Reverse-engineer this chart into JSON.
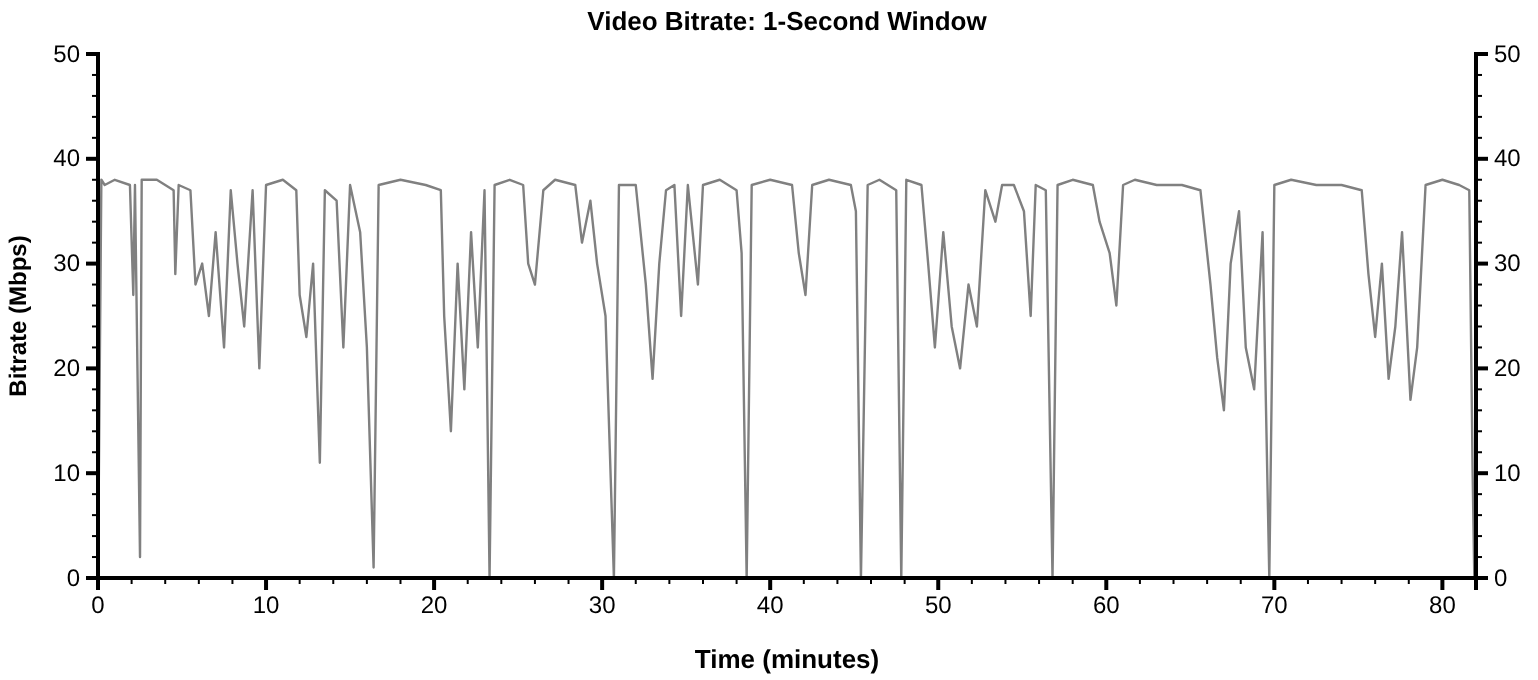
{
  "chart_data": {
    "type": "line",
    "title": "Video Bitrate: 1-Second Window",
    "xlabel": "Time (minutes)",
    "ylabel": "Bitrate (Mbps)",
    "xlim": [
      0,
      82
    ],
    "ylim": [
      0,
      50
    ],
    "y2lim": [
      0,
      50
    ],
    "xticks": [
      0,
      {
        "value": 2,
        "label": null
      },
      {
        "value": 4,
        "label": null
      },
      {
        "value": 6,
        "label": null
      },
      {
        "value": 8,
        "label": null
      },
      10,
      {
        "value": 12,
        "label": null
      },
      {
        "value": 14,
        "label": null
      },
      {
        "value": 16,
        "label": null
      },
      {
        "value": 18,
        "label": null
      },
      20,
      {
        "value": 22,
        "label": null
      },
      {
        "value": 24,
        "label": null
      },
      {
        "value": 26,
        "label": null
      },
      {
        "value": 28,
        "label": null
      },
      30,
      {
        "value": 32,
        "label": null
      },
      {
        "value": 34,
        "label": null
      },
      {
        "value": 36,
        "label": null
      },
      {
        "value": 38,
        "label": null
      },
      40,
      {
        "value": 42,
        "label": null
      },
      {
        "value": 44,
        "label": null
      },
      {
        "value": 46,
        "label": null
      },
      {
        "value": 48,
        "label": null
      },
      50,
      {
        "value": 52,
        "label": null
      },
      {
        "value": 54,
        "label": null
      },
      {
        "value": 56,
        "label": null
      },
      {
        "value": 58,
        "label": null
      },
      60,
      {
        "value": 62,
        "label": null
      },
      {
        "value": 64,
        "label": null
      },
      {
        "value": 66,
        "label": null
      },
      {
        "value": 68,
        "label": null
      },
      70,
      {
        "value": 72,
        "label": null
      },
      {
        "value": 74,
        "label": null
      },
      {
        "value": 76,
        "label": null
      },
      {
        "value": 78,
        "label": null
      },
      80
    ],
    "yticks": [
      0,
      {
        "value": 2,
        "label": null
      },
      {
        "value": 4,
        "label": null
      },
      {
        "value": 6,
        "label": null
      },
      {
        "value": 8,
        "label": null
      },
      10,
      {
        "value": 12,
        "label": null
      },
      {
        "value": 14,
        "label": null
      },
      {
        "value": 16,
        "label": null
      },
      {
        "value": 18,
        "label": null
      },
      20,
      {
        "value": 22,
        "label": null
      },
      {
        "value": 24,
        "label": null
      },
      {
        "value": 26,
        "label": null
      },
      {
        "value": 28,
        "label": null
      },
      30,
      {
        "value": 32,
        "label": null
      },
      {
        "value": 34,
        "label": null
      },
      {
        "value": 36,
        "label": null
      },
      {
        "value": 38,
        "label": null
      },
      40,
      {
        "value": 42,
        "label": null
      },
      {
        "value": 44,
        "label": null
      },
      {
        "value": 46,
        "label": null
      },
      {
        "value": 48,
        "label": null
      },
      50
    ],
    "y2ticks": [
      0,
      {
        "value": 2,
        "label": null
      },
      {
        "value": 4,
        "label": null
      },
      {
        "value": 6,
        "label": null
      },
      {
        "value": 8,
        "label": null
      },
      10,
      {
        "value": 12,
        "label": null
      },
      {
        "value": 14,
        "label": null
      },
      {
        "value": 16,
        "label": null
      },
      {
        "value": 18,
        "label": null
      },
      20,
      {
        "value": 22,
        "label": null
      },
      {
        "value": 24,
        "label": null
      },
      {
        "value": 26,
        "label": null
      },
      {
        "value": 28,
        "label": null
      },
      30,
      {
        "value": 32,
        "label": null
      },
      {
        "value": 34,
        "label": null
      },
      {
        "value": 36,
        "label": null
      },
      {
        "value": 38,
        "label": null
      },
      40,
      {
        "value": 42,
        "label": null
      },
      {
        "value": 44,
        "label": null
      },
      {
        "value": 46,
        "label": null
      },
      {
        "value": 48,
        "label": null
      },
      50
    ],
    "grid": false,
    "marker": "none",
    "line_style": "solid",
    "series": [
      {
        "color": "#808080",
        "x": [
          0,
          0.2,
          0.4,
          1,
          1.9,
          2.1,
          2.2,
          2.5,
          2.6,
          3.5,
          4.5,
          4.6,
          4.8,
          5.5,
          5.8,
          6.2,
          6.6,
          7,
          7.5,
          7.9,
          8.3,
          8.7,
          9.2,
          9.6,
          10,
          11,
          11.8,
          12,
          12.4,
          12.8,
          13.2,
          13.5,
          14.2,
          14.6,
          15,
          15.6,
          16,
          16.4,
          16.7,
          18,
          19.5,
          20.4,
          20.6,
          21,
          21.4,
          21.8,
          22.2,
          22.6,
          23,
          23.3,
          23.6,
          24.5,
          25.3,
          25.6,
          26,
          26.5,
          27.2,
          28.4,
          28.8,
          29.3,
          29.7,
          30.2,
          30.7,
          31,
          32,
          32.6,
          33,
          33.4,
          33.8,
          34.3,
          34.7,
          35.1,
          35.7,
          36,
          37,
          38,
          38.3,
          38.6,
          38.9,
          40,
          41.3,
          41.7,
          42.1,
          42.5,
          43.5,
          44.8,
          45.1,
          45.4,
          45.8,
          46.5,
          47.5,
          47.8,
          48.1,
          49,
          49.4,
          49.8,
          50.3,
          50.8,
          51.3,
          51.8,
          52.3,
          52.8,
          53.4,
          53.8,
          54.5,
          55.1,
          55.5,
          55.8,
          56.4,
          56.8,
          57.1,
          58,
          59.2,
          59.6,
          60.2,
          60.6,
          61,
          61.7,
          63,
          64.5,
          65.6,
          66.2,
          66.6,
          67,
          67.4,
          67.9,
          68.3,
          68.8,
          69.3,
          69.7,
          70,
          71,
          72.5,
          74,
          75.2,
          75.6,
          76,
          76.4,
          76.8,
          77.2,
          77.6,
          78.1,
          78.5,
          79,
          80,
          81,
          81.6,
          81.8,
          81.9
        ],
        "values": [
          0,
          38,
          37.5,
          38,
          37.5,
          27,
          37.5,
          2,
          38,
          38,
          37,
          29,
          37.5,
          37,
          28,
          30,
          25,
          33,
          22,
          37,
          30,
          24,
          37,
          20,
          37.5,
          38,
          37,
          27,
          23,
          30,
          11,
          37,
          36,
          22,
          37.5,
          33,
          22,
          1,
          37.5,
          38,
          37.5,
          37,
          25,
          14,
          30,
          18,
          33,
          22,
          37,
          0,
          37.5,
          38,
          37.5,
          30,
          28,
          37,
          38,
          37.5,
          32,
          36,
          30,
          25,
          0,
          37.5,
          37.5,
          28,
          19,
          30,
          37,
          37.5,
          25,
          37.5,
          28,
          37.5,
          38,
          37,
          31,
          0,
          37.5,
          38,
          37.5,
          31,
          27,
          37.5,
          38,
          37.5,
          35,
          0,
          37.5,
          38,
          37,
          0,
          38,
          37.5,
          30,
          22,
          33,
          24,
          20,
          28,
          24,
          37,
          34,
          37.5,
          37.5,
          35,
          25,
          37.5,
          37,
          0,
          37.5,
          38,
          37.5,
          34,
          31,
          26,
          37.5,
          38,
          37.5,
          37.5,
          37,
          28,
          21,
          16,
          30,
          35,
          22,
          18,
          33,
          0,
          37.5,
          38,
          37.5,
          37.5,
          37,
          29,
          23,
          30,
          19,
          24,
          33,
          17,
          22,
          37.5,
          38,
          37.5,
          37,
          10,
          0
        ]
      }
    ]
  }
}
